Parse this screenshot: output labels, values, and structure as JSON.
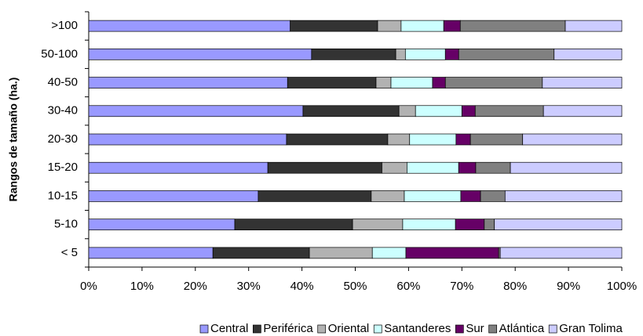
{
  "chart_data": {
    "type": "stacked-bar-horizontal",
    "y_label": "Rangos de tamaño (ha.)",
    "categories": [
      ">100",
      "50-100",
      "40-50",
      "30-40",
      "20-30",
      "15-20",
      "10-15",
      "5-10",
      "< 5"
    ],
    "series": [
      {
        "name": "Central",
        "color": "#9999ff",
        "values": [
          37.8,
          41.8,
          37.3,
          40.2,
          37.1,
          33.6,
          31.8,
          27.4,
          23.3
        ]
      },
      {
        "name": "Periférica",
        "color": "#333333",
        "values": [
          16.4,
          15.8,
          16.6,
          18.0,
          19.0,
          21.4,
          21.2,
          22.1,
          18.1
        ]
      },
      {
        "name": "Oriental",
        "color": "#b2b2b2",
        "values": [
          4.4,
          1.8,
          2.8,
          3.1,
          4.1,
          4.7,
          6.2,
          9.4,
          11.8
        ]
      },
      {
        "name": "Santanderes",
        "color": "#ccffff",
        "values": [
          8.0,
          7.5,
          7.8,
          8.7,
          8.7,
          9.7,
          10.6,
          9.9,
          6.3
        ]
      },
      {
        "name": "Sur",
        "color": "#660066",
        "values": [
          3.1,
          2.5,
          2.4,
          2.5,
          2.7,
          3.2,
          3.7,
          5.4,
          17.4
        ]
      },
      {
        "name": "Atlántica",
        "color": "#808080",
        "values": [
          19.7,
          17.9,
          18.2,
          12.8,
          9.8,
          6.5,
          4.6,
          1.9,
          0.3
        ]
      },
      {
        "name": "Gran Tolima",
        "color": "#ccccff",
        "values": [
          10.6,
          12.7,
          14.9,
          14.7,
          18.6,
          20.9,
          21.9,
          23.9,
          22.8
        ]
      }
    ],
    "xlim": [
      0,
      100
    ],
    "xticks": [
      {
        "value": 0,
        "label": "0%"
      },
      {
        "value": 10,
        "label": "10%"
      },
      {
        "value": 20,
        "label": "20%"
      },
      {
        "value": 30,
        "label": "30%"
      },
      {
        "value": 40,
        "label": "40%"
      },
      {
        "value": 50,
        "label": "50%"
      },
      {
        "value": 60,
        "label": "60%"
      },
      {
        "value": 70,
        "label": "70%"
      },
      {
        "value": 80,
        "label": "80%"
      },
      {
        "value": 90,
        "label": "90%"
      },
      {
        "value": 100,
        "label": "100%"
      }
    ],
    "legend": "bottom"
  }
}
